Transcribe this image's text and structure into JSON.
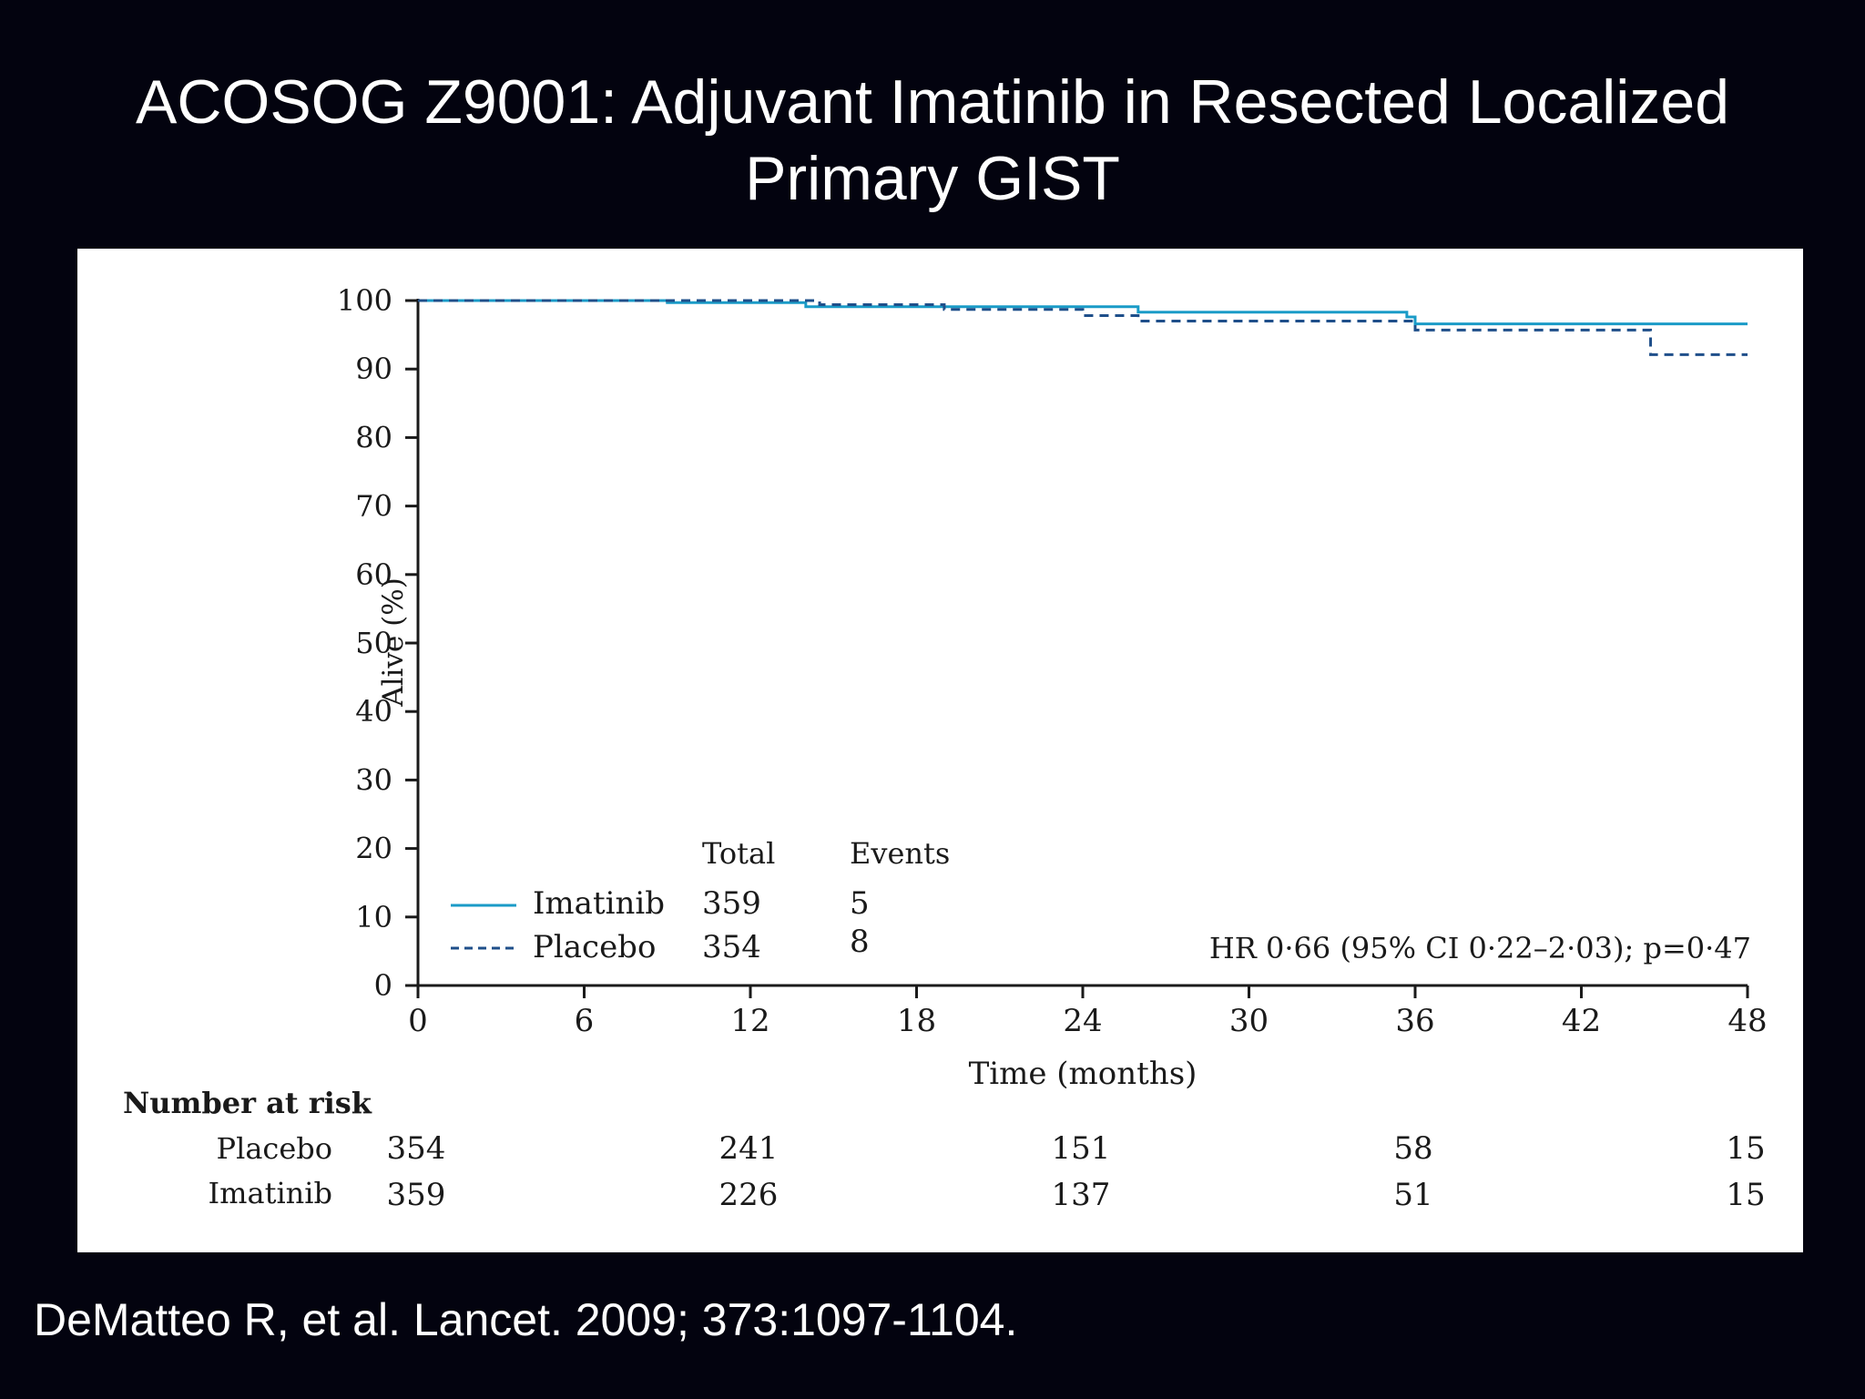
{
  "slide": {
    "title_line1": "ACOSOG Z9001: Adjuvant Imatinib in Resected Localized",
    "title_line2": "Primary GIST",
    "citation": "DeMatteo R, et al. Lancet. 2009; 373:1097-1104."
  },
  "colors": {
    "background": "#03030f",
    "panel": "#ffffff",
    "imatinib": "#1a9bc7",
    "placebo": "#1f4f8a",
    "axis": "#1a1a1a"
  },
  "chart_data": {
    "type": "line",
    "subtype": "kaplan-meier step curve",
    "xlabel": "Time (months)",
    "ylabel": "Alive (%)",
    "xlim": [
      0,
      48
    ],
    "ylim": [
      0,
      100
    ],
    "xticks": [
      0,
      6,
      12,
      18,
      24,
      30,
      36,
      42,
      48
    ],
    "yticks": [
      0,
      10,
      20,
      30,
      40,
      50,
      60,
      70,
      80,
      90,
      100
    ],
    "grid": false,
    "series": [
      {
        "name": "Imatinib",
        "style": "solid",
        "total": "359",
        "events": "5",
        "steps": [
          [
            0,
            100
          ],
          [
            9,
            99.7
          ],
          [
            14,
            99.1
          ],
          [
            26,
            98.3
          ],
          [
            35.7,
            97.6
          ],
          [
            36,
            96.6
          ],
          [
            48,
            96.6
          ]
        ]
      },
      {
        "name": "Placebo",
        "style": "dashed",
        "total": "354",
        "events": "8",
        "steps": [
          [
            0,
            100
          ],
          [
            9,
            100
          ],
          [
            14.5,
            99.4
          ],
          [
            19,
            98.7
          ],
          [
            24,
            97.8
          ],
          [
            26,
            97.0
          ],
          [
            35.5,
            97.0
          ],
          [
            36,
            95.7
          ],
          [
            44,
            95.7
          ],
          [
            44.5,
            92.1
          ],
          [
            48,
            92.1
          ]
        ]
      }
    ],
    "legend": {
      "position": "bottom-left",
      "col_total": "Total",
      "col_events": "Events"
    },
    "annotation": "HR 0·66 (95% CI 0·22–2·03); p=0·47",
    "risk_table": {
      "title": "Number at risk",
      "timepoints": [
        0,
        12,
        24,
        36,
        48
      ],
      "rows": [
        {
          "label": "Placebo",
          "values": [
            "354",
            "241",
            "151",
            "58",
            "15"
          ]
        },
        {
          "label": "Imatinib",
          "values": [
            "359",
            "226",
            "137",
            "51",
            "15"
          ]
        }
      ]
    }
  }
}
